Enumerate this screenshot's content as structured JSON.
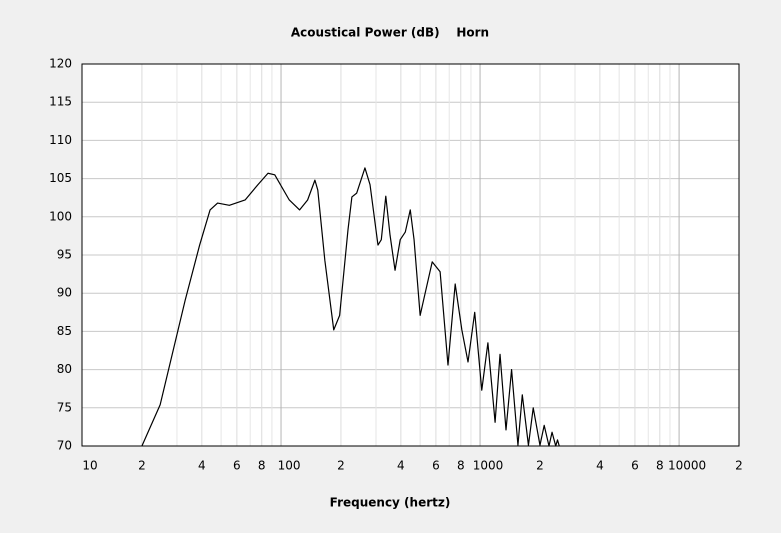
{
  "chart_data": {
    "type": "line",
    "title": "Acoustical Power (dB)    Horn",
    "xlabel": "Frequency (hertz)",
    "log_x": true,
    "grid": true,
    "xlim": [
      10,
      20000
    ],
    "ylim": [
      70,
      120
    ],
    "yticks": [
      70,
      75,
      80,
      85,
      90,
      95,
      100,
      105,
      110,
      115,
      120
    ],
    "xticks": [
      10,
      {
        "value": 20,
        "label": "2"
      },
      {
        "value": 40,
        "label": "4"
      },
      {
        "value": 60,
        "label": "6"
      },
      {
        "value": 80,
        "label": "8"
      },
      100,
      {
        "value": 200,
        "label": "2"
      },
      {
        "value": 400,
        "label": "4"
      },
      {
        "value": 600,
        "label": "6"
      },
      {
        "value": 800,
        "label": "8"
      },
      1000,
      {
        "value": 2000,
        "label": "2"
      },
      {
        "value": 4000,
        "label": "4"
      },
      {
        "value": 6000,
        "label": "6"
      },
      {
        "value": 8000,
        "label": "8"
      },
      10000,
      {
        "value": 20000,
        "label": "2"
      }
    ],
    "x_minor_grid": [
      30,
      50,
      70,
      90,
      300,
      500,
      700,
      900,
      3000,
      5000,
      7000,
      9000
    ],
    "series": [
      {
        "color": "#000000",
        "x": [
          20,
          24.7,
          33,
          39,
          44,
          48,
          55,
          66,
          76.5,
          86,
          93,
          110,
          124,
          136,
          148,
          153,
          166,
          184,
          197,
          217,
          227,
          240,
          264,
          280,
          307,
          319,
          336,
          353,
          374,
          397,
          421,
          446,
          466,
          500,
          575,
          630,
          690,
          750,
          810,
          870,
          940,
          1020,
          1095,
          1190,
          1260,
          1350,
          1440,
          1550,
          1630,
          1750,
          1850,
          2000,
          2100,
          2220,
          2300,
          2400,
          2450,
          2500
        ],
        "values": [
          70,
          75.4,
          89.1,
          96.3,
          100.9,
          101.8,
          101.5,
          102.2,
          104.2,
          105.7,
          105.5,
          102.2,
          100.9,
          102.2,
          104.8,
          103.5,
          94.3,
          85.2,
          87.1,
          98.3,
          102.6,
          103.1,
          106.4,
          104.2,
          96.3,
          97.0,
          102.7,
          97.6,
          93.0,
          97.0,
          98.0,
          100.9,
          97.0,
          87.1,
          94.1,
          92.8,
          80.6,
          91.2,
          85.2,
          81.0,
          87.5,
          77.3,
          83.5,
          73.1,
          82.0,
          72.1,
          80.0,
          70.1,
          76.7,
          70.1,
          75.0,
          70.1,
          72.7,
          70,
          71.8,
          70,
          70.8,
          70
        ]
      }
    ]
  }
}
